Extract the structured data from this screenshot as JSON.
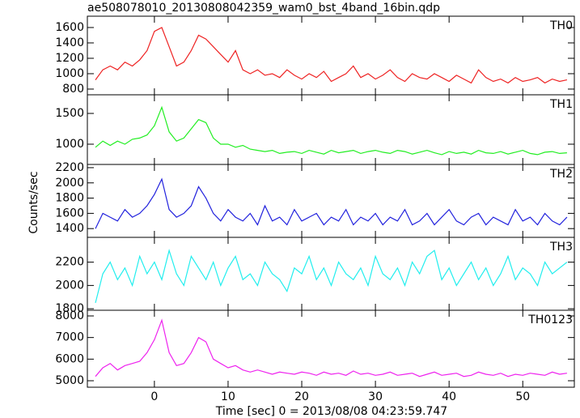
{
  "chart_data": [
    {
      "type": "line",
      "title": "ae508078010_20130808042359_wam0_bst_4band_16bin.qdp",
      "label": "TH0",
      "color": "#ee2222",
      "x": [
        -8,
        -7,
        -6,
        -5,
        -4,
        -3,
        -2,
        -1,
        0,
        1,
        2,
        3,
        4,
        5,
        6,
        7,
        8,
        9,
        10,
        11,
        12,
        13,
        14,
        15,
        16,
        17,
        18,
        19,
        20,
        21,
        22,
        23,
        24,
        25,
        26,
        27,
        28,
        29,
        30,
        31,
        32,
        33,
        34,
        35,
        36,
        37,
        38,
        39,
        40,
        41,
        42,
        43,
        44,
        45,
        46,
        47,
        48,
        49,
        50,
        51,
        52,
        53,
        54,
        55,
        56
      ],
      "values": [
        920,
        1050,
        1100,
        1050,
        1150,
        1100,
        1180,
        1300,
        1550,
        1600,
        1350,
        1100,
        1150,
        1300,
        1500,
        1450,
        1350,
        1250,
        1150,
        1300,
        1050,
        1000,
        1050,
        980,
        1000,
        950,
        1050,
        980,
        930,
        1000,
        950,
        1030,
        900,
        950,
        1000,
        1100,
        950,
        1000,
        930,
        980,
        1050,
        950,
        900,
        1000,
        950,
        930,
        1000,
        950,
        900,
        980,
        930,
        880,
        1050,
        950,
        900,
        930,
        880,
        950,
        900,
        920,
        950,
        880,
        930,
        900,
        920
      ],
      "xlim": [
        -9.1,
        57
      ],
      "xticks": [
        0,
        10,
        20,
        30,
        40,
        50
      ],
      "ylim": [
        726,
        1747
      ],
      "yticks": [
        800,
        1000,
        1200,
        1400,
        1600
      ]
    },
    {
      "type": "line",
      "label": "TH1",
      "color": "#22ee22",
      "x": [
        -8,
        -7,
        -6,
        -5,
        -4,
        -3,
        -2,
        -1,
        0,
        1,
        2,
        3,
        4,
        5,
        6,
        7,
        8,
        9,
        10,
        11,
        12,
        13,
        14,
        15,
        16,
        17,
        18,
        19,
        20,
        21,
        22,
        23,
        24,
        25,
        26,
        27,
        28,
        29,
        30,
        31,
        32,
        33,
        34,
        35,
        36,
        37,
        38,
        39,
        40,
        41,
        42,
        43,
        44,
        45,
        46,
        47,
        48,
        49,
        50,
        51,
        52,
        53,
        54,
        55,
        56
      ],
      "values": [
        950,
        1050,
        980,
        1050,
        1000,
        1080,
        1100,
        1150,
        1300,
        1600,
        1200,
        1050,
        1100,
        1250,
        1400,
        1350,
        1100,
        1000,
        1000,
        950,
        980,
        920,
        900,
        880,
        900,
        850,
        870,
        880,
        850,
        900,
        870,
        840,
        900,
        860,
        880,
        900,
        850,
        880,
        900,
        870,
        850,
        900,
        880,
        840,
        870,
        900,
        860,
        830,
        880,
        850,
        870,
        840,
        900,
        860,
        850,
        880,
        840,
        870,
        900,
        850,
        830,
        870,
        880,
        850,
        860
      ],
      "xlim": [
        -9.1,
        57
      ],
      "xticks": [
        0,
        10,
        20,
        30,
        40,
        50
      ],
      "ylim": [
        671,
        1803
      ],
      "yticks": [
        1000,
        1500
      ]
    },
    {
      "type": "line",
      "ylabel": "Counts/sec",
      "label": "TH2",
      "color": "#2222dd",
      "x": [
        -8,
        -7,
        -6,
        -5,
        -4,
        -3,
        -2,
        -1,
        0,
        1,
        2,
        3,
        4,
        5,
        6,
        7,
        8,
        9,
        10,
        11,
        12,
        13,
        14,
        15,
        16,
        17,
        18,
        19,
        20,
        21,
        22,
        23,
        24,
        25,
        26,
        27,
        28,
        29,
        30,
        31,
        32,
        33,
        34,
        35,
        36,
        37,
        38,
        39,
        40,
        41,
        42,
        43,
        44,
        45,
        46,
        47,
        48,
        49,
        50,
        51,
        52,
        53,
        54,
        55,
        56
      ],
      "values": [
        1400,
        1600,
        1550,
        1500,
        1650,
        1550,
        1600,
        1700,
        1850,
        2050,
        1650,
        1550,
        1600,
        1700,
        1950,
        1800,
        1600,
        1500,
        1650,
        1550,
        1500,
        1600,
        1450,
        1700,
        1500,
        1550,
        1450,
        1650,
        1500,
        1550,
        1600,
        1450,
        1550,
        1500,
        1650,
        1450,
        1550,
        1500,
        1600,
        1450,
        1550,
        1500,
        1650,
        1450,
        1500,
        1600,
        1450,
        1550,
        1650,
        1500,
        1450,
        1550,
        1600,
        1450,
        1550,
        1500,
        1450,
        1650,
        1500,
        1550,
        1450,
        1600,
        1500,
        1450,
        1550
      ],
      "xlim": [
        -9.1,
        57
      ],
      "xticks": [
        0,
        10,
        20,
        30,
        40,
        50
      ],
      "ylim": [
        1285,
        2242
      ],
      "yticks": [
        1400,
        1600,
        1800,
        2000,
        2200
      ]
    },
    {
      "type": "line",
      "label": "TH3",
      "color": "#22eeee",
      "x": [
        -8,
        -7,
        -6,
        -5,
        -4,
        -3,
        -2,
        -1,
        0,
        1,
        2,
        3,
        4,
        5,
        6,
        7,
        8,
        9,
        10,
        11,
        12,
        13,
        14,
        15,
        16,
        17,
        18,
        19,
        20,
        21,
        22,
        23,
        24,
        25,
        26,
        27,
        28,
        29,
        30,
        31,
        32,
        33,
        34,
        35,
        36,
        37,
        38,
        39,
        40,
        41,
        42,
        43,
        44,
        45,
        46,
        47,
        48,
        49,
        50,
        51,
        52,
        53,
        54,
        55,
        56
      ],
      "values": [
        1850,
        2100,
        2200,
        2050,
        2150,
        2000,
        2250,
        2100,
        2200,
        2050,
        2300,
        2100,
        2000,
        2250,
        2150,
        2050,
        2200,
        2000,
        2150,
        2250,
        2050,
        2100,
        2000,
        2200,
        2100,
        2050,
        1950,
        2150,
        2100,
        2250,
        2050,
        2150,
        2000,
        2200,
        2100,
        2050,
        2150,
        2000,
        2250,
        2100,
        2050,
        2150,
        2000,
        2200,
        2100,
        2250,
        2300,
        2050,
        2150,
        2000,
        2100,
        2200,
        2050,
        2150,
        2000,
        2100,
        2250,
        2050,
        2150,
        2100,
        2000,
        2200,
        2100,
        2150,
        2200
      ],
      "xlim": [
        -9.1,
        57
      ],
      "xticks": [
        0,
        10,
        20,
        30,
        40,
        50
      ],
      "ylim": [
        1787,
        2413
      ],
      "yticks": [
        1800,
        2000,
        2200
      ]
    },
    {
      "type": "line",
      "xlabel": "Time [sec] 0 = 2013/08/08 04:23:59.747",
      "label": "TH0123",
      "color": "#ee22ee",
      "x": [
        -8,
        -7,
        -6,
        -5,
        -4,
        -3,
        -2,
        -1,
        0,
        1,
        2,
        3,
        4,
        5,
        6,
        7,
        8,
        9,
        10,
        11,
        12,
        13,
        14,
        15,
        16,
        17,
        18,
        19,
        20,
        21,
        22,
        23,
        24,
        25,
        26,
        27,
        28,
        29,
        30,
        31,
        32,
        33,
        34,
        35,
        36,
        37,
        38,
        39,
        40,
        41,
        42,
        43,
        44,
        45,
        46,
        47,
        48,
        49,
        50,
        51,
        52,
        53,
        54,
        55,
        56
      ],
      "values": [
        5200,
        5600,
        5800,
        5500,
        5700,
        5800,
        5900,
        6300,
        6900,
        7800,
        6300,
        5700,
        5800,
        6300,
        7000,
        6800,
        6000,
        5800,
        5600,
        5700,
        5500,
        5400,
        5500,
        5400,
        5300,
        5400,
        5350,
        5300,
        5400,
        5350,
        5250,
        5400,
        5300,
        5350,
        5250,
        5450,
        5300,
        5350,
        5250,
        5300,
        5400,
        5250,
        5300,
        5350,
        5200,
        5300,
        5400,
        5250,
        5300,
        5350,
        5200,
        5250,
        5400,
        5300,
        5250,
        5350,
        5200,
        5300,
        5250,
        5350,
        5300,
        5250,
        5400,
        5300,
        5350
      ],
      "xlim": [
        -9.1,
        57
      ],
      "xticks": [
        0,
        10,
        20,
        30,
        40,
        50
      ],
      "ylim": [
        4700,
        8262
      ],
      "yticks": [
        5000,
        6000,
        7000,
        8000
      ]
    }
  ]
}
